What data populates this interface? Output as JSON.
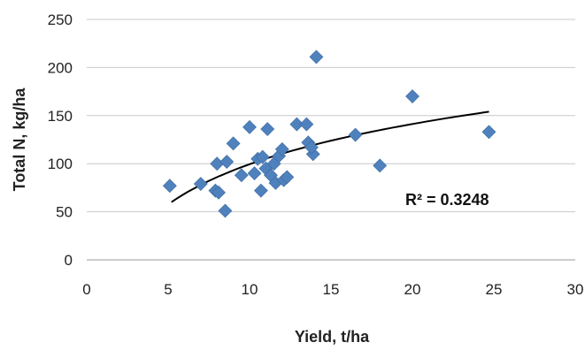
{
  "chart_data": {
    "type": "scatter",
    "title": "",
    "xlabel": "Yield, t/ha",
    "ylabel": "Total N, kg/ha",
    "xlim": [
      0,
      30
    ],
    "ylim": [
      0,
      250
    ],
    "xticks": [
      0,
      5,
      10,
      15,
      20,
      25,
      30
    ],
    "yticks": [
      0,
      50,
      100,
      150,
      200,
      250
    ],
    "grid": "horizontal",
    "legend": "none",
    "series": [
      {
        "marker": "diamond",
        "color": "#4F81BD",
        "points": [
          [
            5.1,
            77
          ],
          [
            7.0,
            79
          ],
          [
            7.9,
            72
          ],
          [
            8.0,
            100
          ],
          [
            8.1,
            70
          ],
          [
            8.5,
            51
          ],
          [
            8.6,
            102
          ],
          [
            9.0,
            121
          ],
          [
            9.5,
            88
          ],
          [
            10.0,
            138
          ],
          [
            10.3,
            90
          ],
          [
            10.5,
            105
          ],
          [
            10.8,
            107
          ],
          [
            10.7,
            72
          ],
          [
            11.0,
            95
          ],
          [
            11.1,
            136
          ],
          [
            11.3,
            88
          ],
          [
            11.5,
            100
          ],
          [
            11.8,
            108
          ],
          [
            11.6,
            80
          ],
          [
            12.0,
            115
          ],
          [
            12.1,
            83
          ],
          [
            12.3,
            86
          ],
          [
            12.9,
            141
          ],
          [
            13.5,
            141
          ],
          [
            13.6,
            122
          ],
          [
            13.9,
            110
          ],
          [
            13.8,
            117
          ],
          [
            14.1,
            211
          ],
          [
            16.5,
            130
          ],
          [
            18.0,
            98
          ],
          [
            20.0,
            170
          ],
          [
            24.7,
            133
          ]
        ]
      }
    ],
    "trendline": {
      "type": "logarithmic",
      "color": "#000000",
      "x_start": 5.2,
      "x_end": 24.7,
      "y_start": 60,
      "y_end": 154
    },
    "annotation": "R² = 0.3248"
  }
}
